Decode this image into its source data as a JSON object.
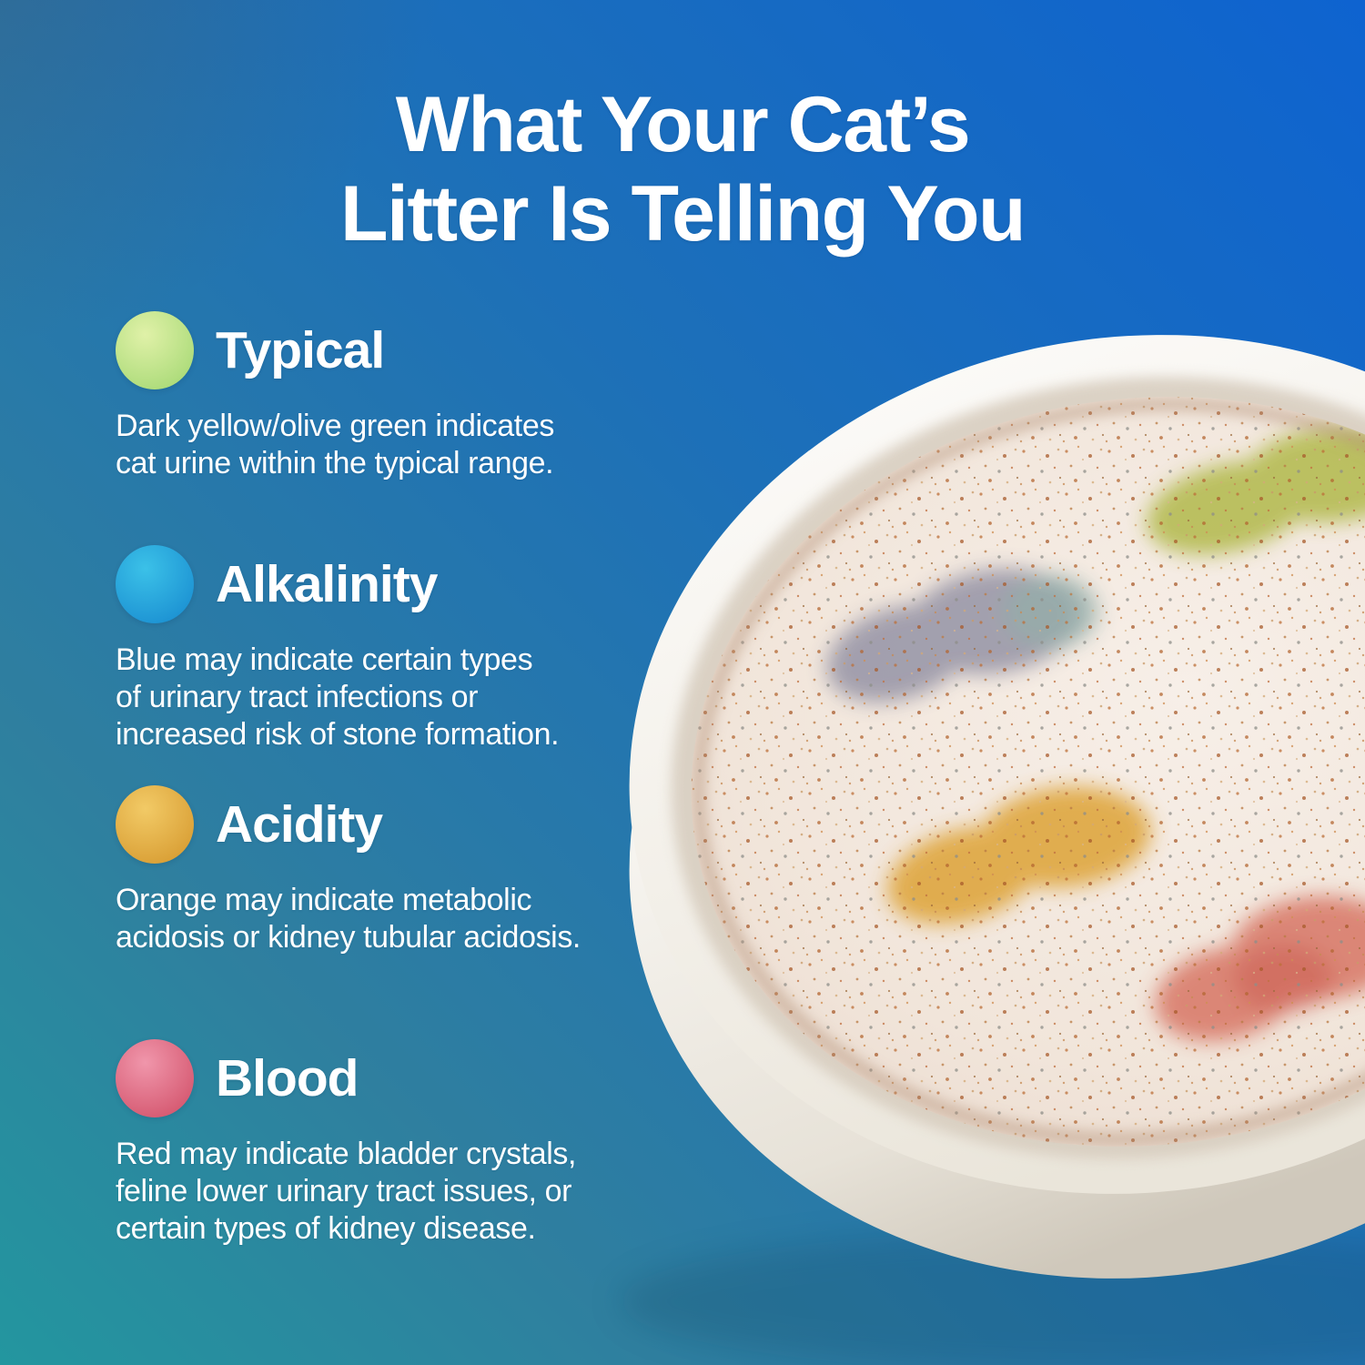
{
  "title": {
    "line1": "What Your Cat’s",
    "line2": "Litter Is Telling You"
  },
  "sections": [
    {
      "id": "typical",
      "label": "Typical",
      "lines": [
        "Dark yellow/olive green indicates",
        "cat urine within the typical range."
      ],
      "dot": {
        "from": "#e0f1a8",
        "to": "#a9da77"
      }
    },
    {
      "id": "alkalinity",
      "label": "Alkalinity",
      "lines": [
        "Blue may indicate certain types",
        "of urinary tract infections or",
        "increased risk of stone formation."
      ],
      "dot": {
        "from": "#3bc1e8",
        "to": "#1b90d2"
      }
    },
    {
      "id": "acidity",
      "label": "Acidity",
      "lines": [
        "Orange may indicate metabolic",
        "acidosis or kidney tubular acidosis."
      ],
      "dot": {
        "from": "#f2ca66",
        "to": "#d89d33"
      }
    },
    {
      "id": "blood",
      "label": "Blood",
      "lines": [
        "Red may indicate bladder crystals,",
        "feline lower urinary tract issues, or",
        "certain types of kidney disease."
      ],
      "dot": {
        "from": "#f096ab",
        "to": "#d4566e"
      }
    }
  ],
  "photo": {
    "description": "White round dish filled with pale speckled cat litter, viewed at an angle, showing four colored indicator spots",
    "dish_color": "#f7f5f0",
    "litter_base_color": "#f2e7dd",
    "spots": [
      {
        "name": "olive-green-spot",
        "color": "#b6bc54"
      },
      {
        "name": "gray-blue-spot",
        "color": "#9b99a9",
        "accent": "#8ba8a4"
      },
      {
        "name": "golden-yellow-spot",
        "color": "#dfa742"
      },
      {
        "name": "red-pink-spot",
        "color": "#d97e6d",
        "accent": "#c9574b"
      }
    ]
  },
  "background": {
    "top_left": "#3e6d8d",
    "top_right": "#0e63d0",
    "bottom_left": "#23969f",
    "bottom_right": "#1778ad"
  }
}
